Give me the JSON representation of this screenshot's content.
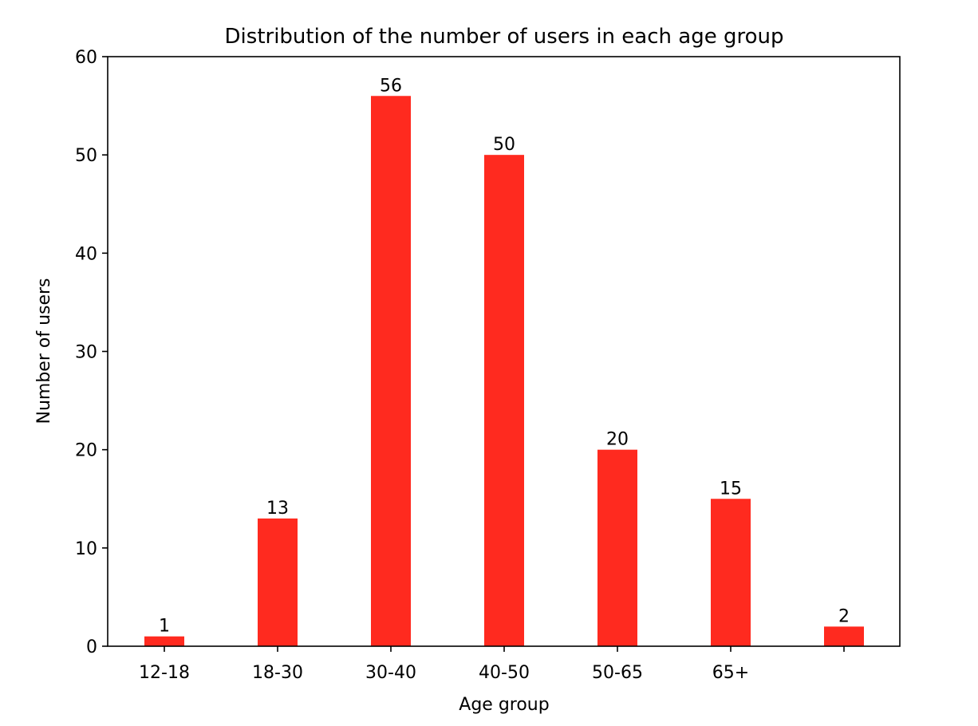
{
  "chart_data": {
    "type": "bar",
    "title": "Distribution of the number of users in each age group",
    "xlabel": "Age group",
    "ylabel": "Number of users",
    "categories": [
      "12-18",
      "18-30",
      "30-40",
      "40-50",
      "50-65",
      "65+",
      ""
    ],
    "values": [
      1,
      13,
      56,
      50,
      20,
      15,
      2
    ],
    "data_labels": [
      "1",
      "13",
      "56",
      "50",
      "20",
      "15",
      "2"
    ],
    "ylim": [
      0,
      60
    ],
    "yticks": [
      0,
      10,
      20,
      30,
      40,
      50,
      60
    ],
    "grid": false,
    "legend": "none",
    "bar_color": "#ff2a1f"
  }
}
